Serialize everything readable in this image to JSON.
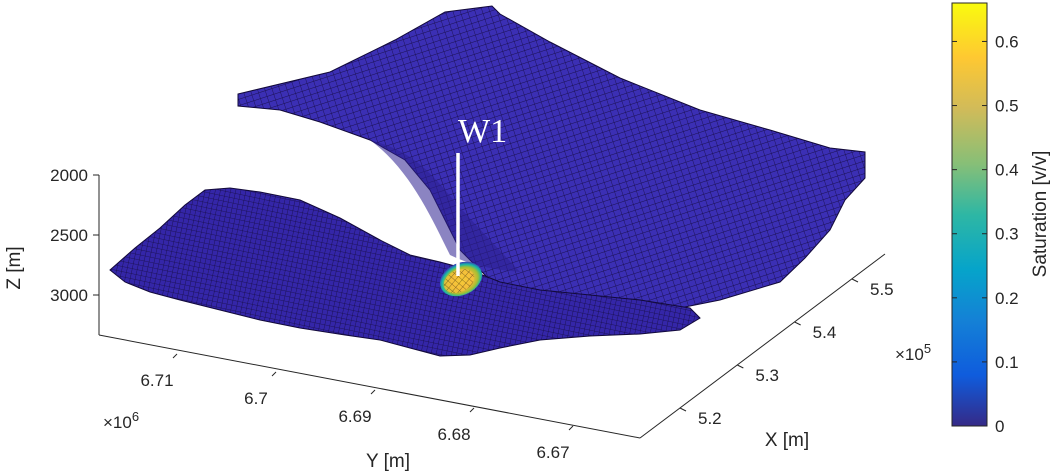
{
  "chart_data": {
    "type": "surface3d",
    "title": "",
    "z_axis": {
      "label": "Z [m]",
      "ticks": [
        2000,
        2500,
        3000
      ],
      "tick_labels": [
        "2000",
        "2500",
        "3000"
      ],
      "reversed": true
    },
    "y_axis": {
      "label": "Y [m]",
      "ticks": [
        6.71,
        6.7,
        6.69,
        6.68,
        6.67
      ],
      "tick_labels": [
        "6.71",
        "6.7",
        "6.69",
        "6.68",
        "6.67"
      ],
      "multiplier_base": "×10",
      "multiplier_exp": "6"
    },
    "x_axis": {
      "label": "X [m]",
      "ticks": [
        5.2,
        5.3,
        5.4,
        5.5
      ],
      "tick_labels": [
        "5.2",
        "5.3",
        "5.4",
        "5.5"
      ],
      "multiplier_base": "×10",
      "multiplier_exp": "5"
    },
    "colorbar": {
      "label": "Saturation [v/v]",
      "range": [
        0,
        0.66
      ],
      "ticks": [
        0,
        0.1,
        0.2,
        0.3,
        0.4,
        0.5,
        0.6
      ],
      "tick_labels": [
        "0",
        "0.1",
        "0.2",
        "0.3",
        "0.4",
        "0.5",
        "0.6"
      ],
      "colormap": "parula"
    },
    "well": {
      "name": "W1"
    },
    "plume_max_saturation": 0.66
  }
}
